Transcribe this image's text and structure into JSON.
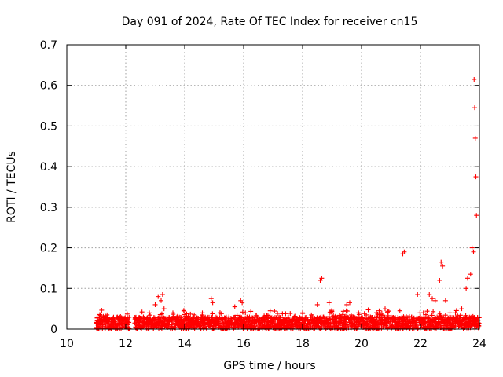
{
  "chart_data": {
    "type": "scatter",
    "title": "Day 091 of 2024, Rate Of TEC Index for receiver cn15",
    "xlabel": "GPS time / hours",
    "ylabel": "ROTI / TECUs",
    "xlim": [
      10,
      24
    ],
    "ylim": [
      0,
      0.7
    ],
    "xticks": [
      "10",
      "12",
      "14",
      "16",
      "18",
      "20",
      "22",
      "24"
    ],
    "yticks": [
      "0",
      "0.1",
      "0.2",
      "0.3",
      "0.4",
      "0.5",
      "0.6",
      "0.7"
    ],
    "grid": true,
    "marker": "+",
    "color": "#ff0000",
    "series": [
      {
        "name": "ROTI",
        "x": [
          11.0,
          11.1,
          11.2,
          11.3,
          11.5,
          11.7,
          11.9,
          12.0,
          12.4,
          12.6,
          12.8,
          13.0,
          13.1,
          13.2,
          13.25,
          13.3,
          13.4,
          13.6,
          13.8,
          14.0,
          14.3,
          14.6,
          14.9,
          14.95,
          15.2,
          15.5,
          15.7,
          15.9,
          15.95,
          16.2,
          16.5,
          16.9,
          17.2,
          17.6,
          18.0,
          18.3,
          18.5,
          18.6,
          18.65,
          18.9,
          19.1,
          19.5,
          19.6,
          19.9,
          20.3,
          20.6,
          20.8,
          21.0,
          21.3,
          21.4,
          21.45,
          21.7,
          21.9,
          22.1,
          22.3,
          22.4,
          22.5,
          22.65,
          22.7,
          22.75,
          22.85,
          23.0,
          23.2,
          23.4,
          23.55,
          23.6,
          23.7,
          23.75,
          23.8,
          23.82,
          23.84,
          23.86,
          23.88,
          23.9,
          23.95
        ],
        "y": [
          0.015,
          0.03,
          0.02,
          0.012,
          0.018,
          0.01,
          0.025,
          0.015,
          0.02,
          0.03,
          0.04,
          0.06,
          0.08,
          0.07,
          0.085,
          0.05,
          0.03,
          0.04,
          0.02,
          0.025,
          0.03,
          0.04,
          0.075,
          0.065,
          0.04,
          0.03,
          0.055,
          0.07,
          0.065,
          0.03,
          0.02,
          0.045,
          0.03,
          0.02,
          0.04,
          0.035,
          0.06,
          0.12,
          0.125,
          0.065,
          0.03,
          0.06,
          0.065,
          0.04,
          0.03,
          0.045,
          0.05,
          0.025,
          0.045,
          0.185,
          0.19,
          0.03,
          0.085,
          0.04,
          0.085,
          0.075,
          0.07,
          0.12,
          0.165,
          0.155,
          0.07,
          0.04,
          0.03,
          0.05,
          0.1,
          0.125,
          0.135,
          0.2,
          0.19,
          0.615,
          0.545,
          0.47,
          0.375,
          0.28,
          0.01
        ]
      }
    ]
  }
}
